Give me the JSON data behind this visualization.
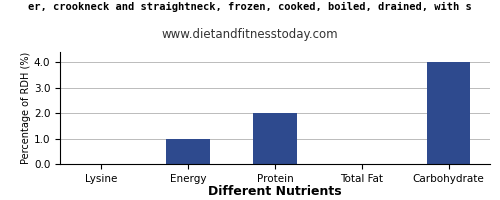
{
  "title_line1": "er, crookneck and straightneck, frozen, cooked, boiled, drained, with s",
  "title_line2": "www.dietandfitnesstoday.com",
  "xlabel": "Different Nutrients",
  "ylabel": "Percentage of RDH (%)",
  "categories": [
    "Lysine",
    "Energy",
    "Protein",
    "Total Fat",
    "Carbohydrate"
  ],
  "values": [
    0.0,
    1.0,
    2.0,
    0.0,
    4.0
  ],
  "bar_color": "#2e4a8e",
  "ylim": [
    0,
    4.4
  ],
  "yticks": [
    0.0,
    1.0,
    2.0,
    3.0,
    4.0
  ],
  "background_color": "#ffffff",
  "grid_color": "#bbbbbb",
  "title1_fontsize": 7.5,
  "title2_fontsize": 8.5,
  "xlabel_fontsize": 9,
  "ylabel_fontsize": 7,
  "xtick_fontsize": 7.5,
  "ytick_fontsize": 7.5
}
